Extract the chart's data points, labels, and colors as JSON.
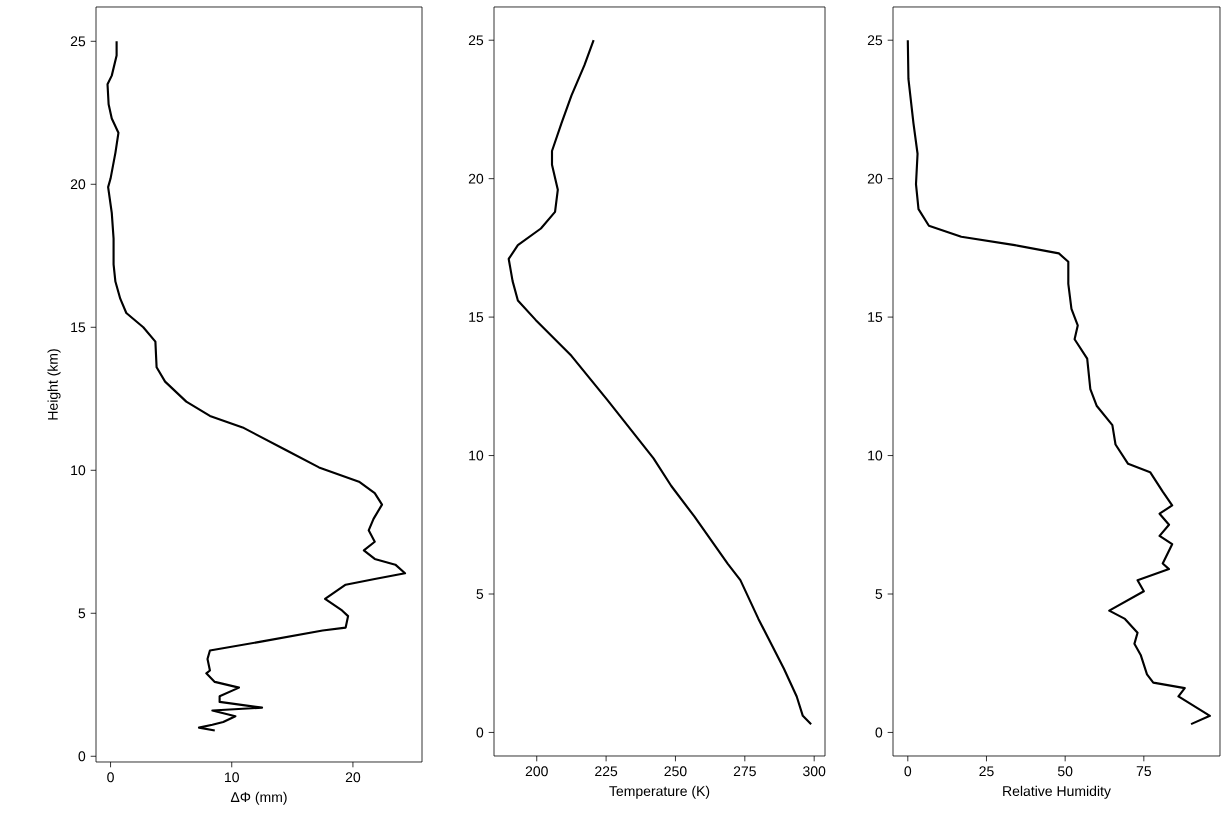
{
  "chart_data": [
    {
      "type": "line",
      "xlabel": "ΔΦ (mm)",
      "ylabel": "Height (km)",
      "xlim": [
        -1.2,
        25.7
      ],
      "ylim": [
        -0.2,
        26.2
      ],
      "xticks": [
        0,
        10,
        20
      ],
      "yticks": [
        0,
        5,
        10,
        15,
        20,
        25
      ],
      "series": [
        {
          "color": "#000000",
          "x": [
            0.5,
            0.5,
            0.1,
            -0.25,
            -0.16,
            0.1,
            0.65,
            0.4,
            0,
            -0.2,
            0.1,
            0.25,
            0.25,
            0.4,
            0.8,
            1.3,
            2.7,
            3.7,
            3.8,
            4.5,
            6.25,
            8.2,
            10.9,
            14.5,
            17.2,
            20.5,
            21.8,
            22.4,
            21.7,
            21.3,
            21.8,
            20.9,
            21.8,
            23.5,
            24.3,
            21.8,
            19.4,
            17.7,
            19.1,
            19.6,
            19.4,
            17.5,
            12.3,
            8.2,
            8.0,
            8.2,
            7.9,
            8.6,
            10.6,
            9.0,
            9.0,
            12.5,
            8.4,
            10.3,
            9.3,
            8.4,
            7.3,
            8.6
          ],
          "values": [
            25.0,
            24.5,
            23.8,
            23.5,
            22.8,
            22.3,
            21.8,
            21.1,
            20.2,
            19.9,
            19.0,
            18.1,
            17.2,
            16.6,
            16.0,
            15.5,
            15.0,
            14.5,
            13.6,
            13.1,
            12.4,
            11.9,
            11.5,
            10.7,
            10.1,
            9.6,
            9.2,
            8.8,
            8.3,
            7.9,
            7.5,
            7.2,
            6.9,
            6.7,
            6.4,
            6.2,
            6.0,
            5.5,
            5.1,
            4.9,
            4.5,
            4.4,
            4.0,
            3.7,
            3.4,
            3.0,
            2.9,
            2.6,
            2.4,
            2.1,
            1.9,
            1.7,
            1.6,
            1.4,
            1.2,
            1.1,
            1.0,
            0.9
          ]
        }
      ]
    },
    {
      "type": "line",
      "xlabel": "Temperature (K)",
      "xlim": [
        184.6,
        303.9
      ],
      "ylim": [
        -0.85,
        26.2
      ],
      "xticks": [
        200,
        225,
        250,
        275,
        300
      ],
      "yticks": [
        0,
        5,
        10,
        15,
        20,
        25
      ],
      "series": [
        {
          "color": "#000000",
          "x": [
            220.5,
            217.2,
            212.5,
            208.9,
            205.5,
            205.5,
            207.6,
            206.6,
            201.5,
            193.2,
            189.9,
            191.3,
            193.2,
            199.6,
            212.5,
            225.5,
            242.1,
            248.5,
            256.8,
            268.8,
            273.4,
            279.9,
            289.1,
            293.7,
            295.9,
            298.9
          ],
          "values": [
            25.0,
            24.1,
            23.0,
            22.0,
            21.0,
            20.5,
            19.6,
            18.8,
            18.2,
            17.6,
            17.1,
            16.3,
            15.6,
            14.9,
            13.6,
            12.0,
            9.9,
            8.9,
            7.8,
            6.1,
            5.5,
            4.1,
            2.3,
            1.3,
            0.6,
            0.3
          ]
        }
      ]
    },
    {
      "type": "line",
      "xlabel": "Relative Humidity",
      "xlim": [
        -4.7,
        99.2
      ],
      "ylim": [
        -0.85,
        26.2
      ],
      "xticks": [
        0,
        25,
        50,
        75
      ],
      "yticks": [
        0,
        5,
        10,
        15,
        20,
        25
      ],
      "series": [
        {
          "color": "#000000",
          "x": [
            0,
            0.2,
            1.8,
            3.1,
            2.6,
            3.4,
            6.7,
            17,
            34,
            48,
            51,
            51,
            52,
            54,
            53,
            57,
            58,
            60,
            65,
            66,
            70,
            77,
            81,
            84,
            80,
            83,
            80,
            84,
            81,
            83,
            73,
            75,
            64,
            69,
            73,
            72,
            74,
            76,
            78,
            88,
            86,
            96,
            90
          ],
          "values": [
            25.0,
            23.6,
            22.0,
            20.9,
            19.8,
            18.9,
            18.3,
            17.9,
            17.6,
            17.3,
            17.0,
            16.2,
            15.3,
            14.7,
            14.2,
            13.5,
            12.4,
            11.8,
            11.1,
            10.4,
            9.7,
            9.4,
            8.7,
            8.2,
            7.9,
            7.5,
            7.1,
            6.8,
            6.1,
            5.9,
            5.5,
            5.1,
            4.4,
            4.1,
            3.6,
            3.2,
            2.8,
            2.1,
            1.8,
            1.6,
            1.3,
            0.6,
            0.3
          ]
        }
      ]
    }
  ]
}
